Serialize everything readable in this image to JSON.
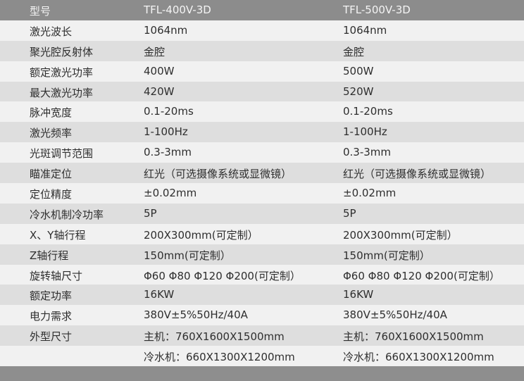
{
  "header": {
    "label": "型号",
    "model_a": "TFL-400V-3D",
    "model_b": "TFL-500V-3D"
  },
  "rows": [
    {
      "label": "激光波长",
      "a": "1064nm",
      "b": "1064nm"
    },
    {
      "label": "聚光腔反射体",
      "a": "金腔",
      "b": "金腔"
    },
    {
      "label": "额定激光功率",
      "a": "400W",
      "b": "500W"
    },
    {
      "label": "最大激光功率",
      "a": "420W",
      "b": "520W"
    },
    {
      "label": "脉冲宽度",
      "a": "0.1-20ms",
      "b": "0.1-20ms"
    },
    {
      "label": "激光频率",
      "a": "1-100Hz",
      "b": "1-100Hz"
    },
    {
      "label": "光斑调节范围",
      "a": "0.3-3mm",
      "b": "0.3-3mm"
    },
    {
      "label": "瞄准定位",
      "a": "红光（可选摄像系统或显微镜）",
      "b": "红光（可选摄像系统或显微镜）"
    },
    {
      "label": "定位精度",
      "a": "±0.02mm",
      "b": "±0.02mm"
    },
    {
      "label": "冷水机制冷功率",
      "a": "5P",
      "b": "5P"
    },
    {
      "label": "X、Y轴行程",
      "a": "200X300mm(可定制）",
      "b": "200X300mm(可定制）"
    },
    {
      "label": "Z轴行程",
      "a": "150mm(可定制）",
      "b": "150mm(可定制）"
    },
    {
      "label": "旋转轴尺寸",
      "a": "Φ60 Φ80 Φ120 Φ200(可定制）",
      "b": "Φ60 Φ80 Φ120 Φ200(可定制）"
    },
    {
      "label": "额定功率",
      "a": "16KW",
      "b": "16KW"
    },
    {
      "label": "电力需求",
      "a": "380V±5%50Hz/40A",
      "b": "380V±5%50Hz/40A"
    },
    {
      "label": "外型尺寸",
      "a": "主机：760X1600X1500mm",
      "b": "主机：760X1600X1500mm"
    },
    {
      "label": "",
      "a": "冷水机：660X1300X1200mm",
      "b": "冷水机：660X1300X1200mm"
    }
  ]
}
